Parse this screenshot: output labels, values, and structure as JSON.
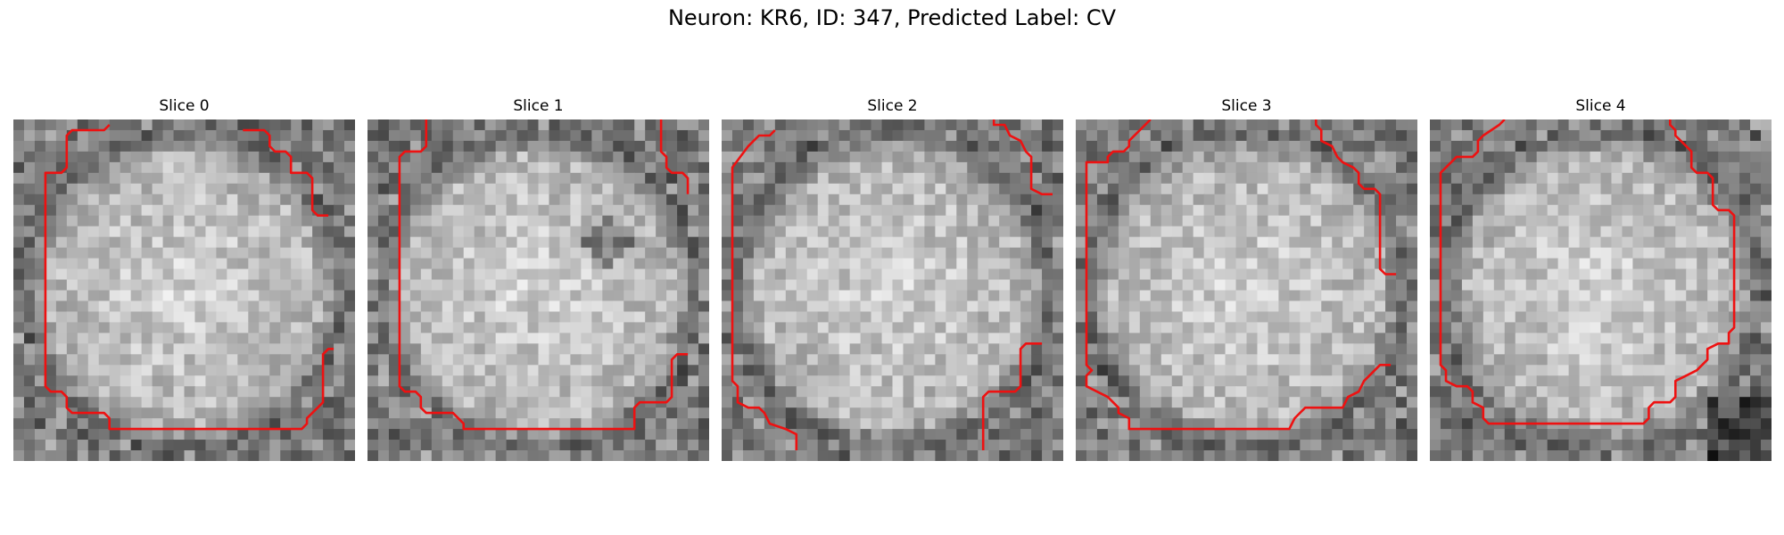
{
  "figure": {
    "title": "Neuron: KR6, ID: 347, Predicted Label: CV"
  },
  "panels": [
    {
      "title": "Slice 0"
    },
    {
      "title": "Slice 1"
    },
    {
      "title": "Slice 2"
    },
    {
      "title": "Slice 3"
    },
    {
      "title": "Slice 4"
    }
  ],
  "colors": {
    "contour": "#ee1111",
    "background": "#ffffff"
  }
}
